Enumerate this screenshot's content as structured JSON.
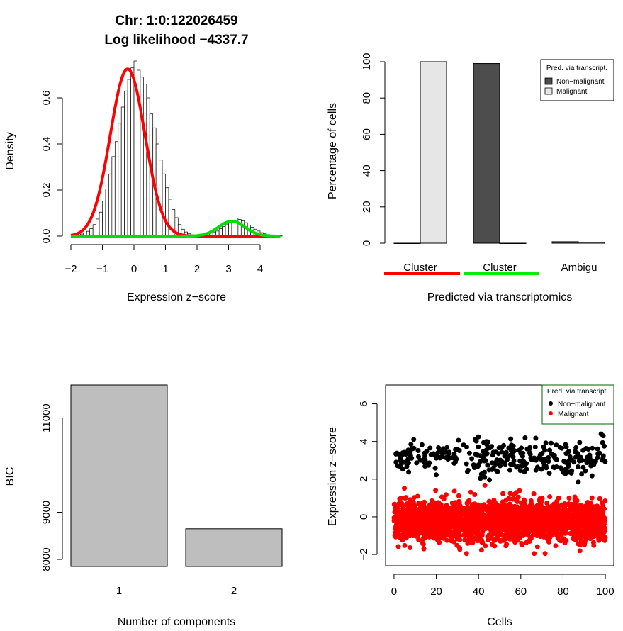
{
  "chart_data": [
    {
      "type": "histogram",
      "title": "Chr: 1:0:122026459",
      "subtitle": "Log likelihood −4337.7",
      "xlabel": "Expression z−score",
      "ylabel": "Density",
      "xlim": [
        -2,
        4.7
      ],
      "ylim": [
        0,
        0.75
      ],
      "xticks": [
        "−2",
        "−1",
        "0",
        "1",
        "2",
        "3",
        "4"
      ],
      "yticks": [
        "0.0",
        "0.2",
        "0.4",
        "0.6"
      ],
      "bin_width": 0.1,
      "bin_start": -1.8,
      "densities": [
        0.004,
        0.009,
        0.014,
        0.021,
        0.032,
        0.05,
        0.074,
        0.104,
        0.152,
        0.205,
        0.27,
        0.345,
        0.41,
        0.49,
        0.56,
        0.63,
        0.68,
        0.73,
        0.76,
        0.72,
        0.69,
        0.66,
        0.6,
        0.53,
        0.47,
        0.4,
        0.33,
        0.27,
        0.21,
        0.16,
        0.115,
        0.08,
        0.05,
        0.03,
        0.018,
        0.01,
        0.006,
        0.004,
        0.003,
        0.003,
        0.006,
        0.009,
        0.013,
        0.018,
        0.022,
        0.032,
        0.042,
        0.052,
        0.06,
        0.068,
        0.078,
        0.072,
        0.066,
        0.058,
        0.048,
        0.038,
        0.03,
        0.022,
        0.015,
        0.01,
        0.007,
        0.004,
        0.002,
        0.001,
        0.001
      ],
      "series": [
        {
          "name": "",
          "color": "#ff0000",
          "mu": -0.2,
          "sigma": 0.55,
          "weight": 1.0
        },
        {
          "name": "",
          "color": "#00dd00",
          "mu": 3.1,
          "sigma": 0.42,
          "weight": 0.068
        }
      ]
    },
    {
      "type": "bar",
      "xlabel": "Predicted via transcriptomics",
      "ylabel": "Percentage of cells",
      "ylim": [
        0,
        100
      ],
      "yticks": [
        "0",
        "20",
        "40",
        "60",
        "80",
        "100"
      ],
      "categories": [
        "Cluster",
        "Cluster",
        "Ambigu"
      ],
      "category_underline_colors": [
        "#ff0000",
        "#00ee00",
        ""
      ],
      "series": [
        {
          "name": "Non−malignant",
          "color": "#4d4d4d",
          "values": [
            0,
            99,
            0.8
          ]
        },
        {
          "name": "Malignant",
          "color": "#e6e6e6",
          "values": [
            100,
            0,
            0.5
          ]
        }
      ],
      "legend": {
        "title": "Pred. via transcript.",
        "position": "top-right"
      }
    },
    {
      "type": "bar",
      "xlabel": "Number of components",
      "ylabel": "BIC",
      "categories": [
        "1",
        "2"
      ],
      "values": [
        11700,
        8650
      ],
      "ylim": [
        7850,
        11700
      ],
      "yticks": [
        "8000",
        "9000",
        "11000"
      ],
      "color": "#bebebe"
    },
    {
      "type": "scatter",
      "xlabel": "Cells",
      "ylabel": "Expression z−score",
      "xlim": [
        -4,
        104
      ],
      "ylim": [
        -2.6,
        7
      ],
      "xticks": [
        "0",
        "20",
        "40",
        "60",
        "80",
        "100"
      ],
      "yticks": [
        "−2",
        "0",
        "2",
        "4",
        "6"
      ],
      "series": [
        {
          "name": "Non−malignant",
          "color": "#000000",
          "n": 300,
          "mean": 3.15,
          "sd": 0.45
        },
        {
          "name": "Malignant",
          "color": "#ff0000",
          "n": 2600,
          "mean": -0.2,
          "sd": 0.5
        }
      ],
      "legend": {
        "title": "Pred. via transcript.",
        "position": "top-right"
      }
    }
  ]
}
